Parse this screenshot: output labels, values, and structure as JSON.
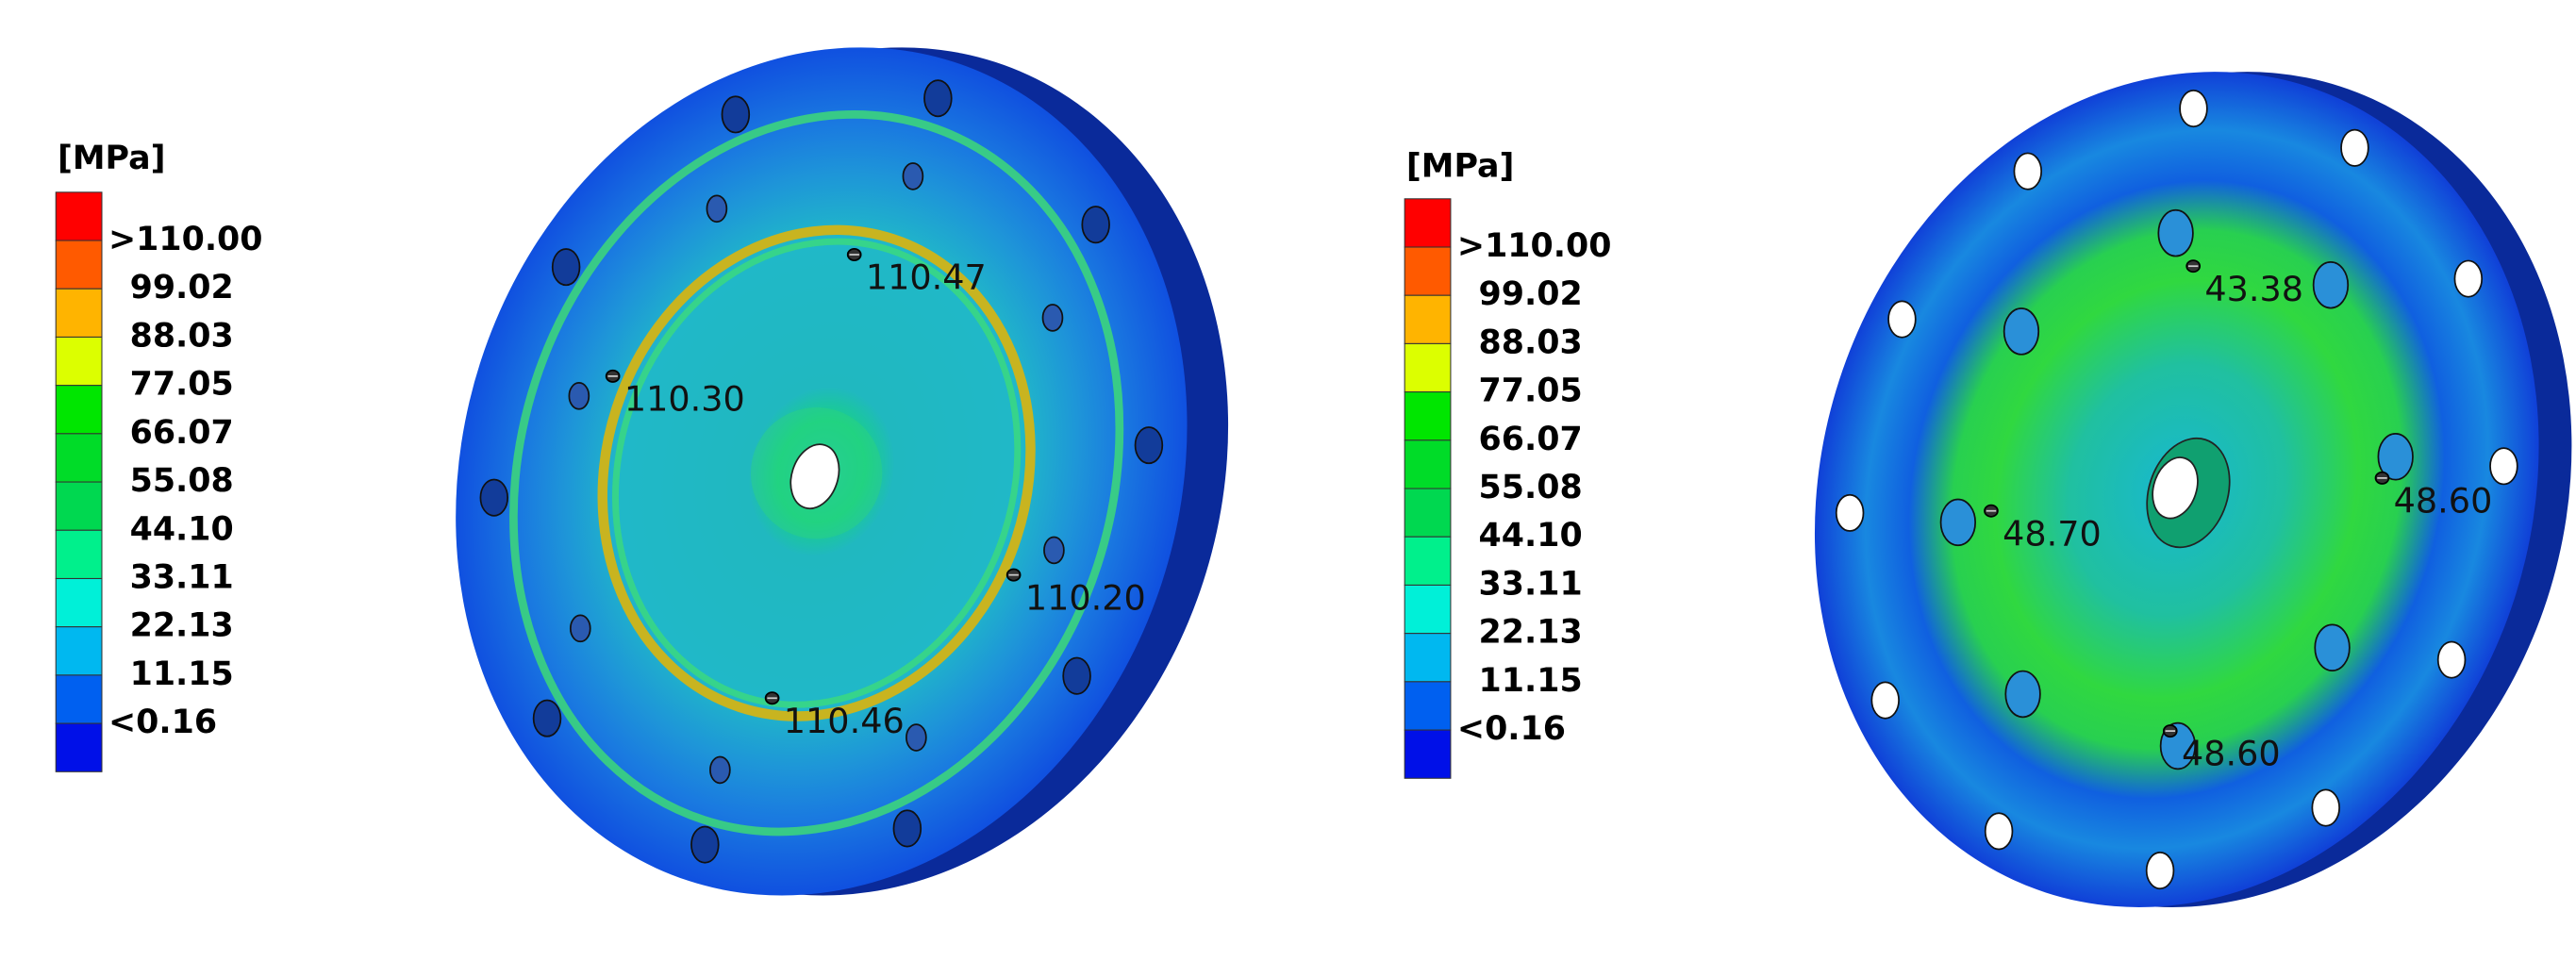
{
  "panels": [
    {
      "legend": {
        "unit": "[MPa]",
        "labels": [
          ">110.00",
          "99.02",
          "88.03",
          "77.05",
          "66.07",
          "55.08",
          "44.10",
          "33.11",
          "22.13",
          "11.15",
          "<0.16"
        ],
        "colors": [
          "#ff0000",
          "#ff5a00",
          "#ffb400",
          "#dcff00",
          "#00e600",
          "#00dc28",
          "#00d850",
          "#00f08c",
          "#00f0d8",
          "#00b8f0",
          "#0060f0",
          "#0010e8"
        ]
      },
      "probes": [
        "110.47",
        "110.30",
        "110.20",
        "110.46"
      ]
    },
    {
      "legend": {
        "unit": "[MPa]",
        "labels": [
          ">110.00",
          "99.02",
          "88.03",
          "77.05",
          "66.07",
          "55.08",
          "44.10",
          "33.11",
          "22.13",
          "11.15",
          "<0.16"
        ],
        "colors": [
          "#ff0000",
          "#ff5a00",
          "#ffb400",
          "#dcff00",
          "#00e600",
          "#00dc28",
          "#00d850",
          "#00f08c",
          "#00f0d8",
          "#00b8f0",
          "#0060f0",
          "#0010e8"
        ]
      },
      "probes": [
        "43.38",
        "48.70",
        "48.60",
        "48.60"
      ]
    }
  ]
}
